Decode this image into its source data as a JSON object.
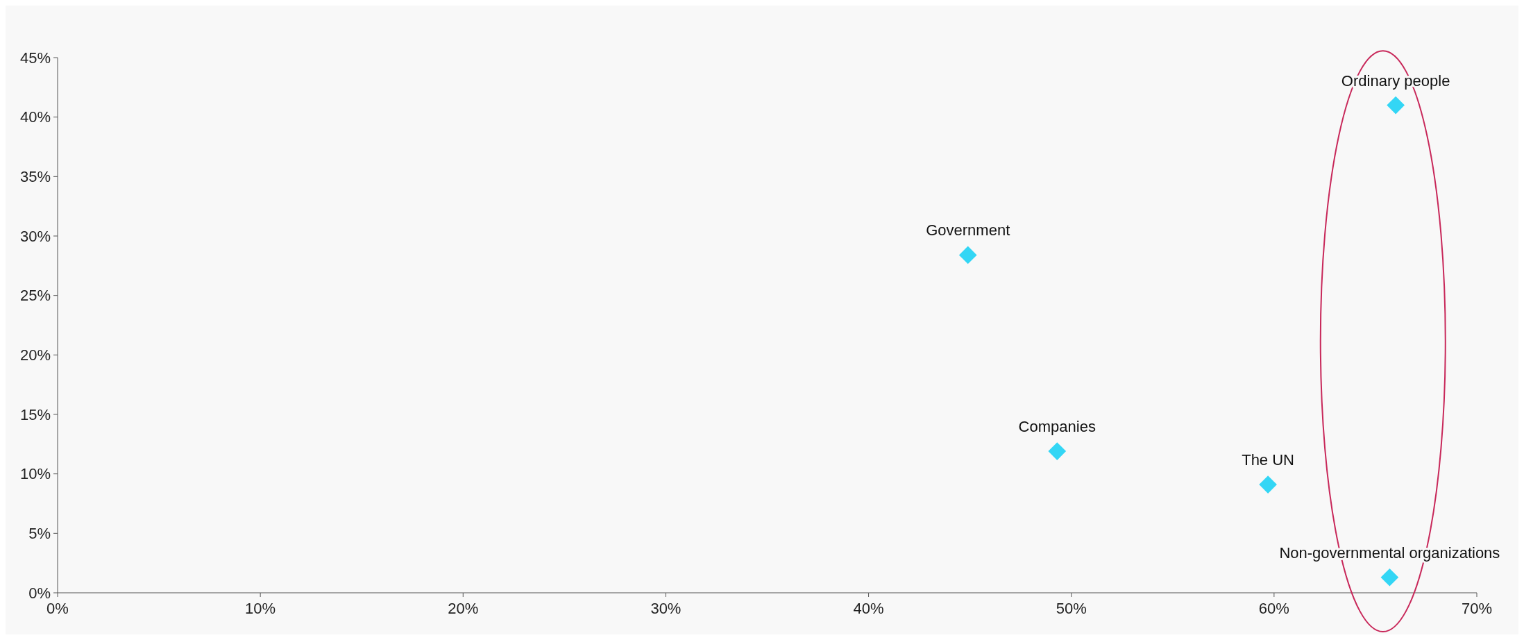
{
  "chart_data": {
    "type": "scatter",
    "x": [
      44.9,
      49.3,
      59.7,
      66.0,
      65.7
    ],
    "values": [
      28.4,
      11.9,
      9.1,
      41.0,
      1.3
    ],
    "color": "#33d6f5",
    "marker": "diamond",
    "xlim": [
      0,
      70
    ],
    "ylim": [
      0,
      45
    ],
    "xticks": [
      {
        "value": 0,
        "label": "0%"
      },
      {
        "value": 10,
        "label": "10%"
      },
      {
        "value": 20,
        "label": "20%"
      },
      {
        "value": 30,
        "label": "30%"
      },
      {
        "value": 40,
        "label": "40%"
      },
      {
        "value": 50,
        "label": "50%"
      },
      {
        "value": 60,
        "label": "60%"
      },
      {
        "value": 70,
        "label": "70%"
      }
    ],
    "yticks": [
      {
        "value": 0,
        "label": "0%"
      },
      {
        "value": 5,
        "label": "5%"
      },
      {
        "value": 10,
        "label": "10%"
      },
      {
        "value": 15,
        "label": "15%"
      },
      {
        "value": 20,
        "label": "20%"
      },
      {
        "value": 25,
        "label": "25%"
      },
      {
        "value": 30,
        "label": "30%"
      },
      {
        "value": 35,
        "label": "35%"
      },
      {
        "value": 40,
        "label": "40%"
      },
      {
        "value": 45,
        "label": "45%"
      }
    ],
    "annotations": [
      {
        "text": "Government",
        "x": 44.9,
        "y": 28.4
      },
      {
        "text": "Companies",
        "x": 49.3,
        "y": 11.9
      },
      {
        "text": "The UN",
        "x": 59.7,
        "y": 9.1
      },
      {
        "text": "Ordinary people",
        "x": 66.0,
        "y": 41.0
      },
      {
        "text": "Non-governmental organizations",
        "x": 65.7,
        "y": 1.3
      }
    ]
  }
}
